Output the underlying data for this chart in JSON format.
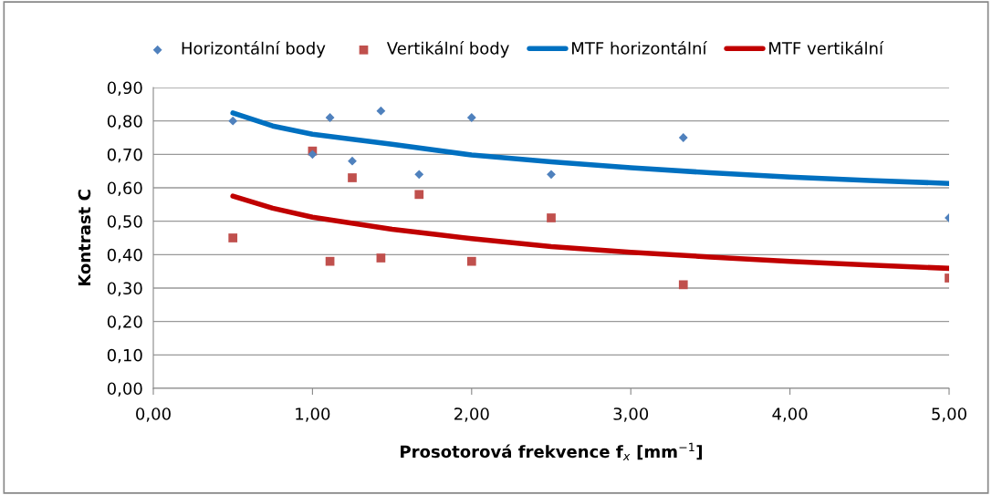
{
  "chart_data": {
    "type": "scatter",
    "xlabel": "Prosotorová frekvence f$_{x}$ [mm$^{−1}$]",
    "ylabel": "Kontrast C",
    "xlim": [
      0,
      5
    ],
    "xticks": [
      {
        "value": 0,
        "label": "0,00"
      },
      {
        "value": 1,
        "label": "1,00"
      },
      {
        "value": 2,
        "label": "2,00"
      },
      {
        "value": 3,
        "label": "3,00"
      },
      {
        "value": 4,
        "label": "4,00"
      },
      {
        "value": 5,
        "label": "5,00"
      }
    ],
    "ylim": [
      0,
      0.9
    ],
    "yticks": [
      {
        "value": 0,
        "label": "0,00"
      },
      {
        "value": 0.1,
        "label": "0,10"
      },
      {
        "value": 0.2,
        "label": "0,20"
      },
      {
        "value": 0.3,
        "label": "0,30"
      },
      {
        "value": 0.4,
        "label": "0,40"
      },
      {
        "value": 0.5,
        "label": "0,50"
      },
      {
        "value": 0.6,
        "label": "0,60"
      },
      {
        "value": 0.7,
        "label": "0,70"
      },
      {
        "value": 0.8,
        "label": "0,80"
      },
      {
        "value": 0.9,
        "label": "0,90"
      }
    ],
    "grid": "y",
    "legend": "top",
    "series": [
      {
        "name": "Horizontální body",
        "marker": "diamond",
        "color": "#4f81bd",
        "x": [
          0.5,
          1.0,
          1.11,
          1.25,
          1.43,
          1.67,
          2.0,
          2.5,
          3.33,
          5.0
        ],
        "values": [
          0.8,
          0.7,
          0.81,
          0.68,
          0.83,
          0.64,
          0.81,
          0.64,
          0.75,
          0.51
        ]
      },
      {
        "name": "Vertikální body",
        "marker": "square",
        "color": "#c0504d",
        "x": [
          0.5,
          1.0,
          1.11,
          1.25,
          1.43,
          1.67,
          2.0,
          2.5,
          3.33,
          5.0
        ],
        "values": [
          0.45,
          0.71,
          0.38,
          0.63,
          0.39,
          0.58,
          0.38,
          0.51,
          0.31,
          0.33
        ]
      },
      {
        "name": "MTF horizontální",
        "type": "line",
        "marker": "none",
        "color": "#0070c0",
        "x": [
          0.5,
          0.75,
          1.0,
          1.5,
          2.0,
          2.5,
          3.0,
          3.5,
          4.0,
          4.5,
          5.0
        ],
        "values": [
          0.824,
          0.785,
          0.76,
          0.73,
          0.698,
          0.678,
          0.66,
          0.645,
          0.632,
          0.622,
          0.613
        ]
      },
      {
        "name": "MTF vertikální",
        "type": "line",
        "marker": "none",
        "color": "#c00000",
        "x": [
          0.5,
          0.75,
          1.0,
          1.5,
          2.0,
          2.5,
          3.0,
          3.5,
          4.0,
          4.5,
          5.0
        ],
        "values": [
          0.575,
          0.539,
          0.512,
          0.476,
          0.448,
          0.424,
          0.407,
          0.393,
          0.38,
          0.369,
          0.359
        ]
      }
    ]
  }
}
